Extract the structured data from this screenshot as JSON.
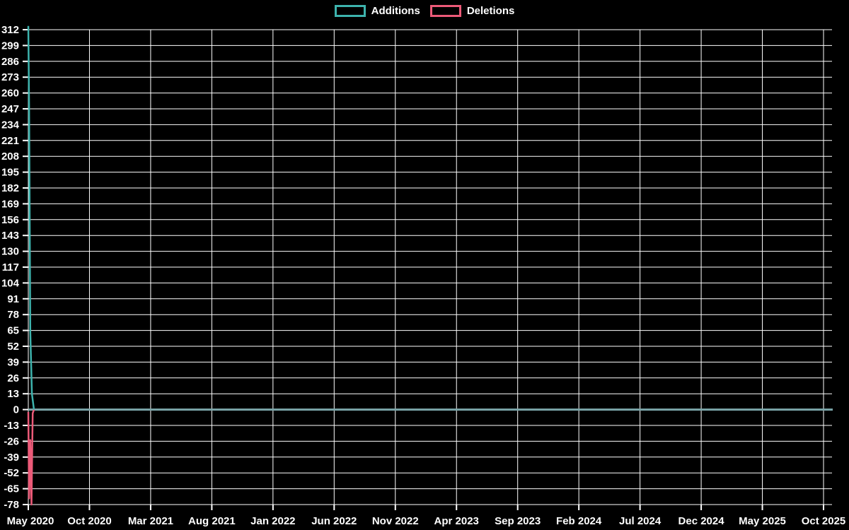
{
  "legend": {
    "items": [
      {
        "label": "Additions",
        "color": "#3db3ad"
      },
      {
        "label": "Deletions",
        "color": "#ec5a78"
      }
    ]
  },
  "chart_data": {
    "type": "line",
    "title": "",
    "xlabel": "",
    "ylabel": "",
    "grid": true,
    "legend_position": "top-center",
    "background_color": "#000000",
    "grid_color": "#ffffff",
    "text_color": "#ffffff",
    "zero_line_color": "#7ba6aa",
    "y_ticks": [
      312,
      299,
      286,
      273,
      260,
      247,
      234,
      221,
      208,
      195,
      182,
      169,
      156,
      143,
      130,
      117,
      104,
      91,
      78,
      65,
      52,
      39,
      26,
      13,
      0,
      -13,
      -26,
      -39,
      -52,
      -65,
      -78
    ],
    "ylim": [
      -78,
      312
    ],
    "x_tick_labels": [
      "May 2020",
      "Oct 2020",
      "Mar 2021",
      "Aug 2021",
      "Jan 2022",
      "Jun 2022",
      "Nov 2022",
      "Apr 2023",
      "Sep 2023",
      "Feb 2024",
      "Jul 2024",
      "Dec 2024",
      "May 2025",
      "Oct 2025"
    ],
    "xlim_days": [
      0,
      1979
    ],
    "series": [
      {
        "name": "Additions",
        "color": "#3db3ad",
        "points_day_value": [
          [
            0,
            315
          ],
          [
            2,
            250
          ],
          [
            5,
            64
          ],
          [
            9,
            13
          ],
          [
            14,
            0
          ]
        ]
      },
      {
        "name": "Deletions",
        "color": "#ec5a78",
        "points_day_value": [
          [
            0,
            -2
          ],
          [
            2,
            -73
          ],
          [
            5,
            -25
          ],
          [
            8,
            -78
          ],
          [
            11,
            -3
          ],
          [
            14,
            0
          ]
        ]
      }
    ]
  }
}
